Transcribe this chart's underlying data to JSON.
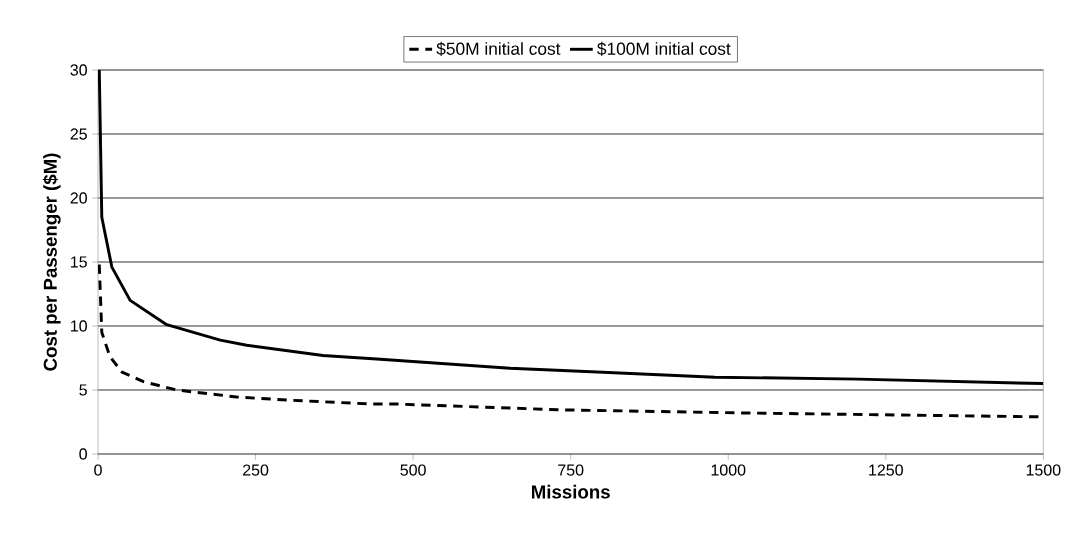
{
  "chart_data": {
    "type": "line",
    "xlabel": "Missions",
    "ylabel": "Cost per Passenger ($M)",
    "xlim": [
      0,
      1500
    ],
    "ylim": [
      0,
      30
    ],
    "xticks": [
      0,
      250,
      500,
      750,
      1000,
      1250,
      1500
    ],
    "yticks": [
      0,
      5,
      10,
      15,
      20,
      25,
      30
    ],
    "grid": "y",
    "legend": "top",
    "marker": "none",
    "series": [
      {
        "name": "$50M initial cost",
        "color": "#000000",
        "line_style": "dashed",
        "x": [
          2,
          6,
          19,
          38,
          72,
          125,
          220,
          305,
          434,
          475,
          733,
          1030,
          1500
        ],
        "values": [
          14.8,
          9.5,
          7.6,
          6.4,
          5.65,
          5.0,
          4.45,
          4.2,
          3.9,
          3.9,
          3.45,
          3.2,
          2.9
        ]
      },
      {
        "name": "$100M initial cost",
        "color": "#000000",
        "line_style": "solid",
        "x": [
          2,
          6,
          22,
          51,
          109,
          194,
          236,
          357,
          448,
          654,
          792,
          979,
          1206,
          1500
        ],
        "values": [
          30,
          18.5,
          14.6,
          12.0,
          10.1,
          8.9,
          8.5,
          7.7,
          7.4,
          6.7,
          6.4,
          6.0,
          5.85,
          5.5
        ]
      }
    ]
  }
}
